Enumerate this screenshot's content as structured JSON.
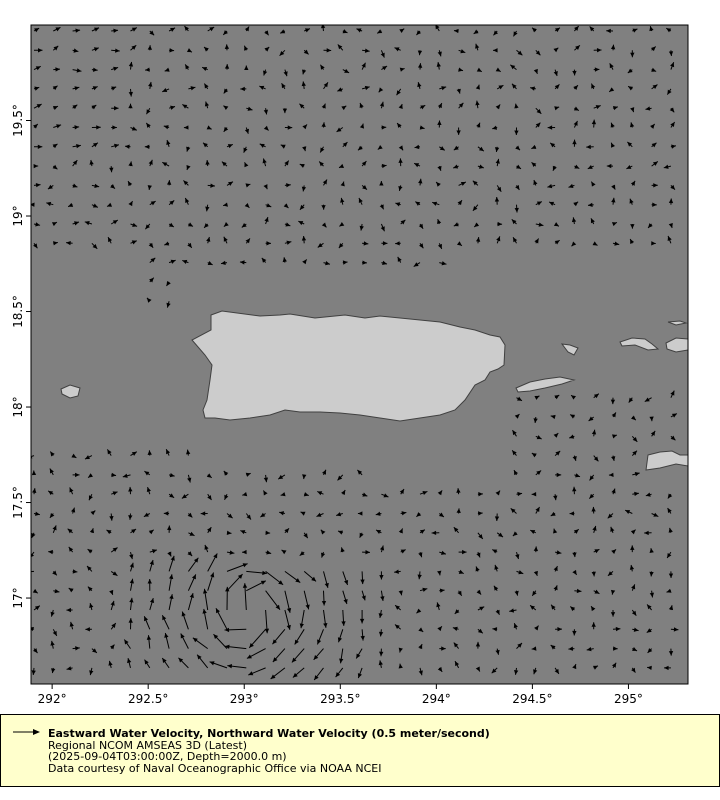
{
  "chart_data": {
    "type": "vector",
    "title": "Eastward Water Velocity, Northward Water Velocity (0.5 meter/second)",
    "xlim": [
      291.89,
      295.31
    ],
    "ylim": [
      16.55,
      20.0
    ],
    "x_ticks": [
      "292°",
      "292.5°",
      "293°",
      "293.5°",
      "294°",
      "294.5°",
      "295°"
    ],
    "x_tick_values": [
      292,
      292.5,
      293,
      293.5,
      294,
      294.5,
      295
    ],
    "y_ticks": [
      "17°",
      "17.5°",
      "18°",
      "18.5°",
      "19°",
      "19.5°"
    ],
    "y_tick_values": [
      17,
      17.5,
      18,
      18.5,
      19,
      19.5
    ],
    "grid": false,
    "legend_placement": "bottom",
    "reference_vector_mps": 0.5
  },
  "colors": {
    "ocean": "#808080",
    "land": "#cccccc",
    "coast": "#404040",
    "vector": "#000000",
    "legend_bg": "#ffffcc"
  },
  "legend": {
    "title": "Eastward Water Velocity, Northward Water Velocity (0.5 meter/second)",
    "line1": "Regional NCOM AMSEAS 3D (Latest)",
    "line2": "(2025-09-04T03:00:00Z, Depth=2000.0 m)",
    "line3": "Data courtesy of Naval Oceanographic Office via NOAA NCEI"
  }
}
